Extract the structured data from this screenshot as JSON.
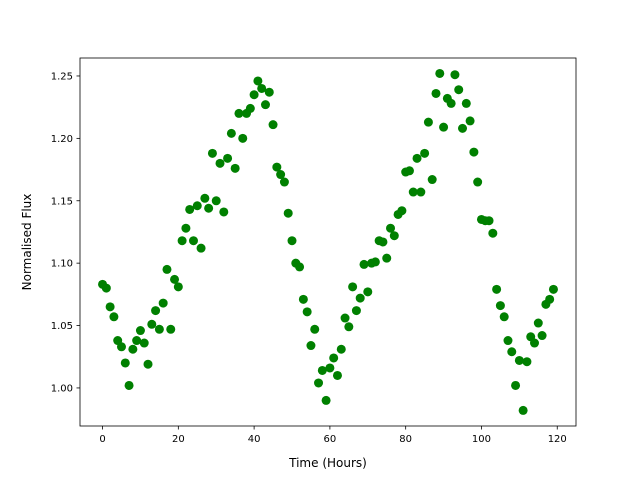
{
  "chart_data": {
    "type": "scatter",
    "x_label": "Time (Hours)",
    "y_label": "Normalised Flux",
    "color": "#008000",
    "x": [
      0,
      1,
      2,
      3,
      4,
      5,
      6,
      7,
      8,
      9,
      10,
      11,
      12,
      13,
      14,
      15,
      16,
      17,
      18,
      19,
      20,
      21,
      22,
      23,
      24,
      25,
      26,
      27,
      28,
      29,
      30,
      31,
      32,
      33,
      34,
      35,
      36,
      37,
      38,
      39,
      40,
      41,
      42,
      43,
      44,
      45,
      46,
      47,
      48,
      49,
      50,
      51,
      52,
      53,
      54,
      55,
      56,
      57,
      58,
      59,
      60,
      61,
      62,
      63,
      64,
      65,
      66,
      67,
      68,
      69,
      70,
      71,
      72,
      73,
      74,
      75,
      76,
      77,
      78,
      79,
      80,
      81,
      82,
      83,
      84,
      85,
      86,
      87,
      88,
      89,
      90,
      91,
      92,
      93,
      94,
      95,
      96,
      97,
      98,
      99,
      100,
      101,
      102,
      103,
      104,
      105,
      106,
      107,
      108,
      109,
      110,
      111,
      112,
      113,
      114,
      115,
      116,
      117,
      118,
      119
    ],
    "values": [
      1.083,
      1.08,
      1.065,
      1.057,
      1.038,
      1.033,
      1.02,
      1.002,
      1.031,
      1.038,
      1.046,
      1.036,
      1.019,
      1.051,
      1.062,
      1.047,
      1.068,
      1.095,
      1.047,
      1.087,
      1.081,
      1.118,
      1.128,
      1.143,
      1.118,
      1.146,
      1.112,
      1.152,
      1.144,
      1.188,
      1.15,
      1.18,
      1.141,
      1.184,
      1.204,
      1.176,
      1.22,
      1.2,
      1.22,
      1.224,
      1.235,
      1.246,
      1.24,
      1.227,
      1.237,
      1.211,
      1.177,
      1.171,
      1.165,
      1.14,
      1.118,
      1.1,
      1.097,
      1.071,
      1.061,
      1.034,
      1.047,
      1.004,
      1.014,
      0.99,
      1.016,
      1.024,
      1.01,
      1.031,
      1.056,
      1.049,
      1.081,
      1.062,
      1.072,
      1.099,
      1.077,
      1.1,
      1.101,
      1.118,
      1.117,
      1.104,
      1.128,
      1.122,
      1.139,
      1.142,
      1.173,
      1.174,
      1.157,
      1.184,
      1.157,
      1.188,
      1.213,
      1.167,
      1.236,
      1.252,
      1.209,
      1.232,
      1.228,
      1.251,
      1.239,
      1.208,
      1.228,
      1.214,
      1.189,
      1.165,
      1.135,
      1.134,
      1.134,
      1.124,
      1.079,
      1.066,
      1.057,
      1.038,
      1.029,
      1.002,
      1.022,
      0.982,
      1.021,
      1.041,
      1.036,
      1.052,
      1.042,
      1.067,
      1.071,
      1.079
    ],
    "xlim": [
      -5.95,
      124.95
    ],
    "ylim": [
      0.9695,
      1.2644
    ],
    "xticks": [
      0,
      20,
      40,
      60,
      80,
      100,
      120
    ],
    "yticks": [
      {
        "value": 1,
        "label": "1.00"
      },
      1.05,
      {
        "value": 1.1,
        "label": "1.10"
      },
      1.15,
      {
        "value": 1.2,
        "label": "1.20"
      },
      1.25
    ]
  }
}
